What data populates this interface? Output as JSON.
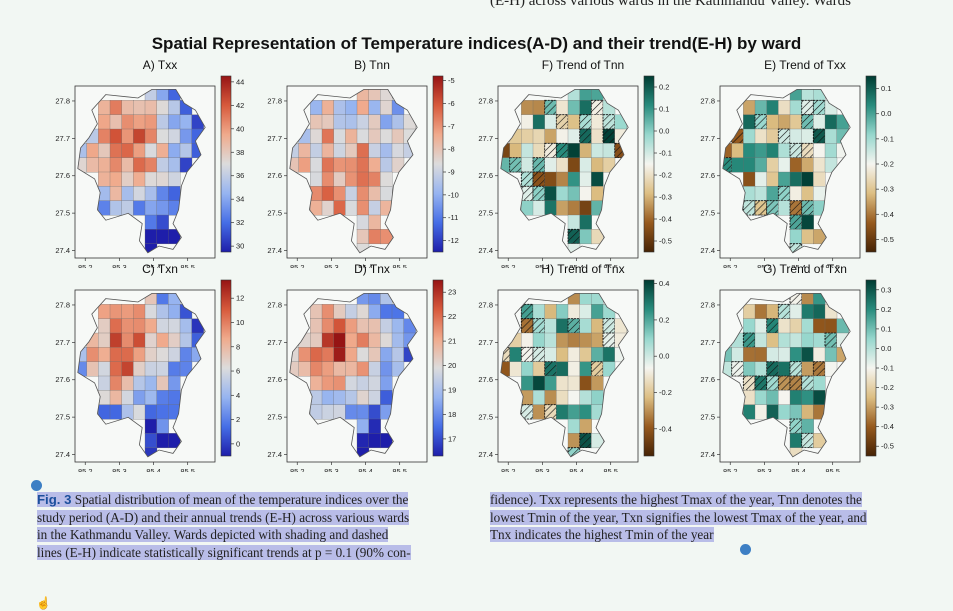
{
  "page": {
    "top_cut_text": "(E-H) across various wards in the Kathmandu Valley. Wards",
    "figure_title": "Spatial Representation of Temperature indices(A-D) and their trend(E-H) by ward"
  },
  "caption": {
    "label": "Fig. 3",
    "left_lines": [
      " Spatial distribution of mean of the temperature indices over the",
      "study period (A-D) and their annual trends (E-H) across various wards",
      "in the Kathmandu Valley. Wards depicted with shading and dashed",
      "lines (E-H) indicate statistically significant trends at p = 0.1 (90% con-"
    ],
    "right_lines": [
      "fidence). Txx represents the highest Tmax of the year, Tnn denotes the",
      "lowest Tmin of the year, Txn signifies the lowest Tmax of the year, and",
      "Tnx indicates the highest Tmin of the year"
    ]
  },
  "chart_data": [
    {
      "type": "heatmap",
      "title": "A) Txx",
      "x_ticks": [
        "85.2",
        "85.3",
        "85.4",
        "85.5"
      ],
      "y_ticks": [
        "27.8",
        "27.7",
        "27.6",
        "27.5",
        "27.4"
      ],
      "xlim": [
        85.17,
        85.58
      ],
      "ylim": [
        27.38,
        27.84
      ],
      "colormap": "coolwarm",
      "colorbar_ticks": [
        "44",
        "42",
        "40",
        "38",
        "36",
        "34",
        "32",
        "30"
      ],
      "colorbar_range": [
        29.5,
        44.5
      ]
    },
    {
      "type": "heatmap",
      "title": "B) Tnn",
      "x_ticks": [
        "85.2",
        "85.3",
        "85.4",
        "85.5"
      ],
      "y_ticks": [
        "27.8",
        "27.7",
        "27.6",
        "27.5",
        "27.4"
      ],
      "xlim": [
        85.17,
        85.58
      ],
      "ylim": [
        27.38,
        27.84
      ],
      "colormap": "coolwarm",
      "colorbar_ticks": [
        "-5",
        "-6",
        "-7",
        "-8",
        "-9",
        "-10",
        "-11",
        "-12"
      ],
      "colorbar_range": [
        -12.5,
        -4.8
      ]
    },
    {
      "type": "heatmap",
      "title": "F) Trend of Tnn",
      "x_ticks": [
        "85.2",
        "85.3",
        "85.4",
        "85.5"
      ],
      "y_ticks": [
        "27.8",
        "27.7",
        "27.6",
        "27.5",
        "27.4"
      ],
      "xlim": [
        85.17,
        85.58
      ],
      "ylim": [
        27.38,
        27.84
      ],
      "colormap": "BrBG",
      "colorbar_ticks": [
        "0.2",
        "0.1",
        "0.0",
        "-0.1",
        "-0.2",
        "-0.3",
        "-0.4",
        "-0.5"
      ],
      "colorbar_range": [
        -0.55,
        0.25
      ],
      "significance_marking": "hatched"
    },
    {
      "type": "heatmap",
      "title": "E) Trend of Txx",
      "x_ticks": [
        "85.2",
        "85.3",
        "85.4",
        "85.5"
      ],
      "y_ticks": [
        "27.8",
        "27.7",
        "27.6",
        "27.5",
        "27.4"
      ],
      "xlim": [
        85.17,
        85.58
      ],
      "ylim": [
        27.38,
        27.84
      ],
      "colormap": "BrBG",
      "colorbar_ticks": [
        "0.1",
        "0.0",
        "-0.1",
        "-0.2",
        "-0.3",
        "-0.4",
        "-0.5"
      ],
      "colorbar_range": [
        -0.55,
        0.15
      ],
      "significance_marking": "hatched"
    },
    {
      "type": "heatmap",
      "title": "C) Txn",
      "x_ticks": [
        "85.2",
        "85.3",
        "85.4",
        "85.5"
      ],
      "y_ticks": [
        "27.8",
        "27.7",
        "27.6",
        "27.5",
        "27.4"
      ],
      "xlim": [
        85.17,
        85.58
      ],
      "ylim": [
        27.38,
        27.84
      ],
      "colormap": "coolwarm",
      "colorbar_ticks": [
        "12",
        "10",
        "8",
        "6",
        "4",
        "2",
        "0"
      ],
      "colorbar_range": [
        -1,
        13.5
      ]
    },
    {
      "type": "heatmap",
      "title": "D) Tnx",
      "x_ticks": [
        "85.2",
        "85.3",
        "85.4",
        "85.5"
      ],
      "y_ticks": [
        "27.8",
        "27.7",
        "27.6",
        "27.5",
        "27.4"
      ],
      "xlim": [
        85.17,
        85.58
      ],
      "ylim": [
        27.38,
        27.84
      ],
      "colormap": "coolwarm",
      "colorbar_ticks": [
        "23",
        "22",
        "21",
        "20",
        "19",
        "18",
        "17"
      ],
      "colorbar_range": [
        16.3,
        23.5
      ]
    },
    {
      "type": "heatmap",
      "title": "H) Trend of Tnx",
      "x_ticks": [
        "85.2",
        "85.3",
        "85.4",
        "85.5"
      ],
      "y_ticks": [
        "27.8",
        "27.7",
        "27.6",
        "27.5",
        "27.4"
      ],
      "xlim": [
        85.17,
        85.58
      ],
      "ylim": [
        27.38,
        27.84
      ],
      "colormap": "BrBG",
      "colorbar_ticks": [
        "0.4",
        "0.2",
        "0.0",
        "-0.2",
        "-0.4"
      ],
      "colorbar_range": [
        -0.55,
        0.42
      ],
      "significance_marking": "hatched"
    },
    {
      "type": "heatmap",
      "title": "G) Trend of Txn",
      "x_ticks": [
        "85.2",
        "85.3",
        "85.4",
        "85.5"
      ],
      "y_ticks": [
        "27.8",
        "27.7",
        "27.6",
        "27.5",
        "27.4"
      ],
      "xlim": [
        85.17,
        85.58
      ],
      "ylim": [
        27.38,
        27.84
      ],
      "colormap": "BrBG",
      "colorbar_ticks": [
        "0.3",
        "0.2",
        "0.1",
        "0.0",
        "-0.1",
        "-0.2",
        "-0.3",
        "-0.4",
        "-0.5"
      ],
      "colorbar_range": [
        -0.55,
        0.35
      ],
      "significance_marking": "hatched"
    }
  ]
}
